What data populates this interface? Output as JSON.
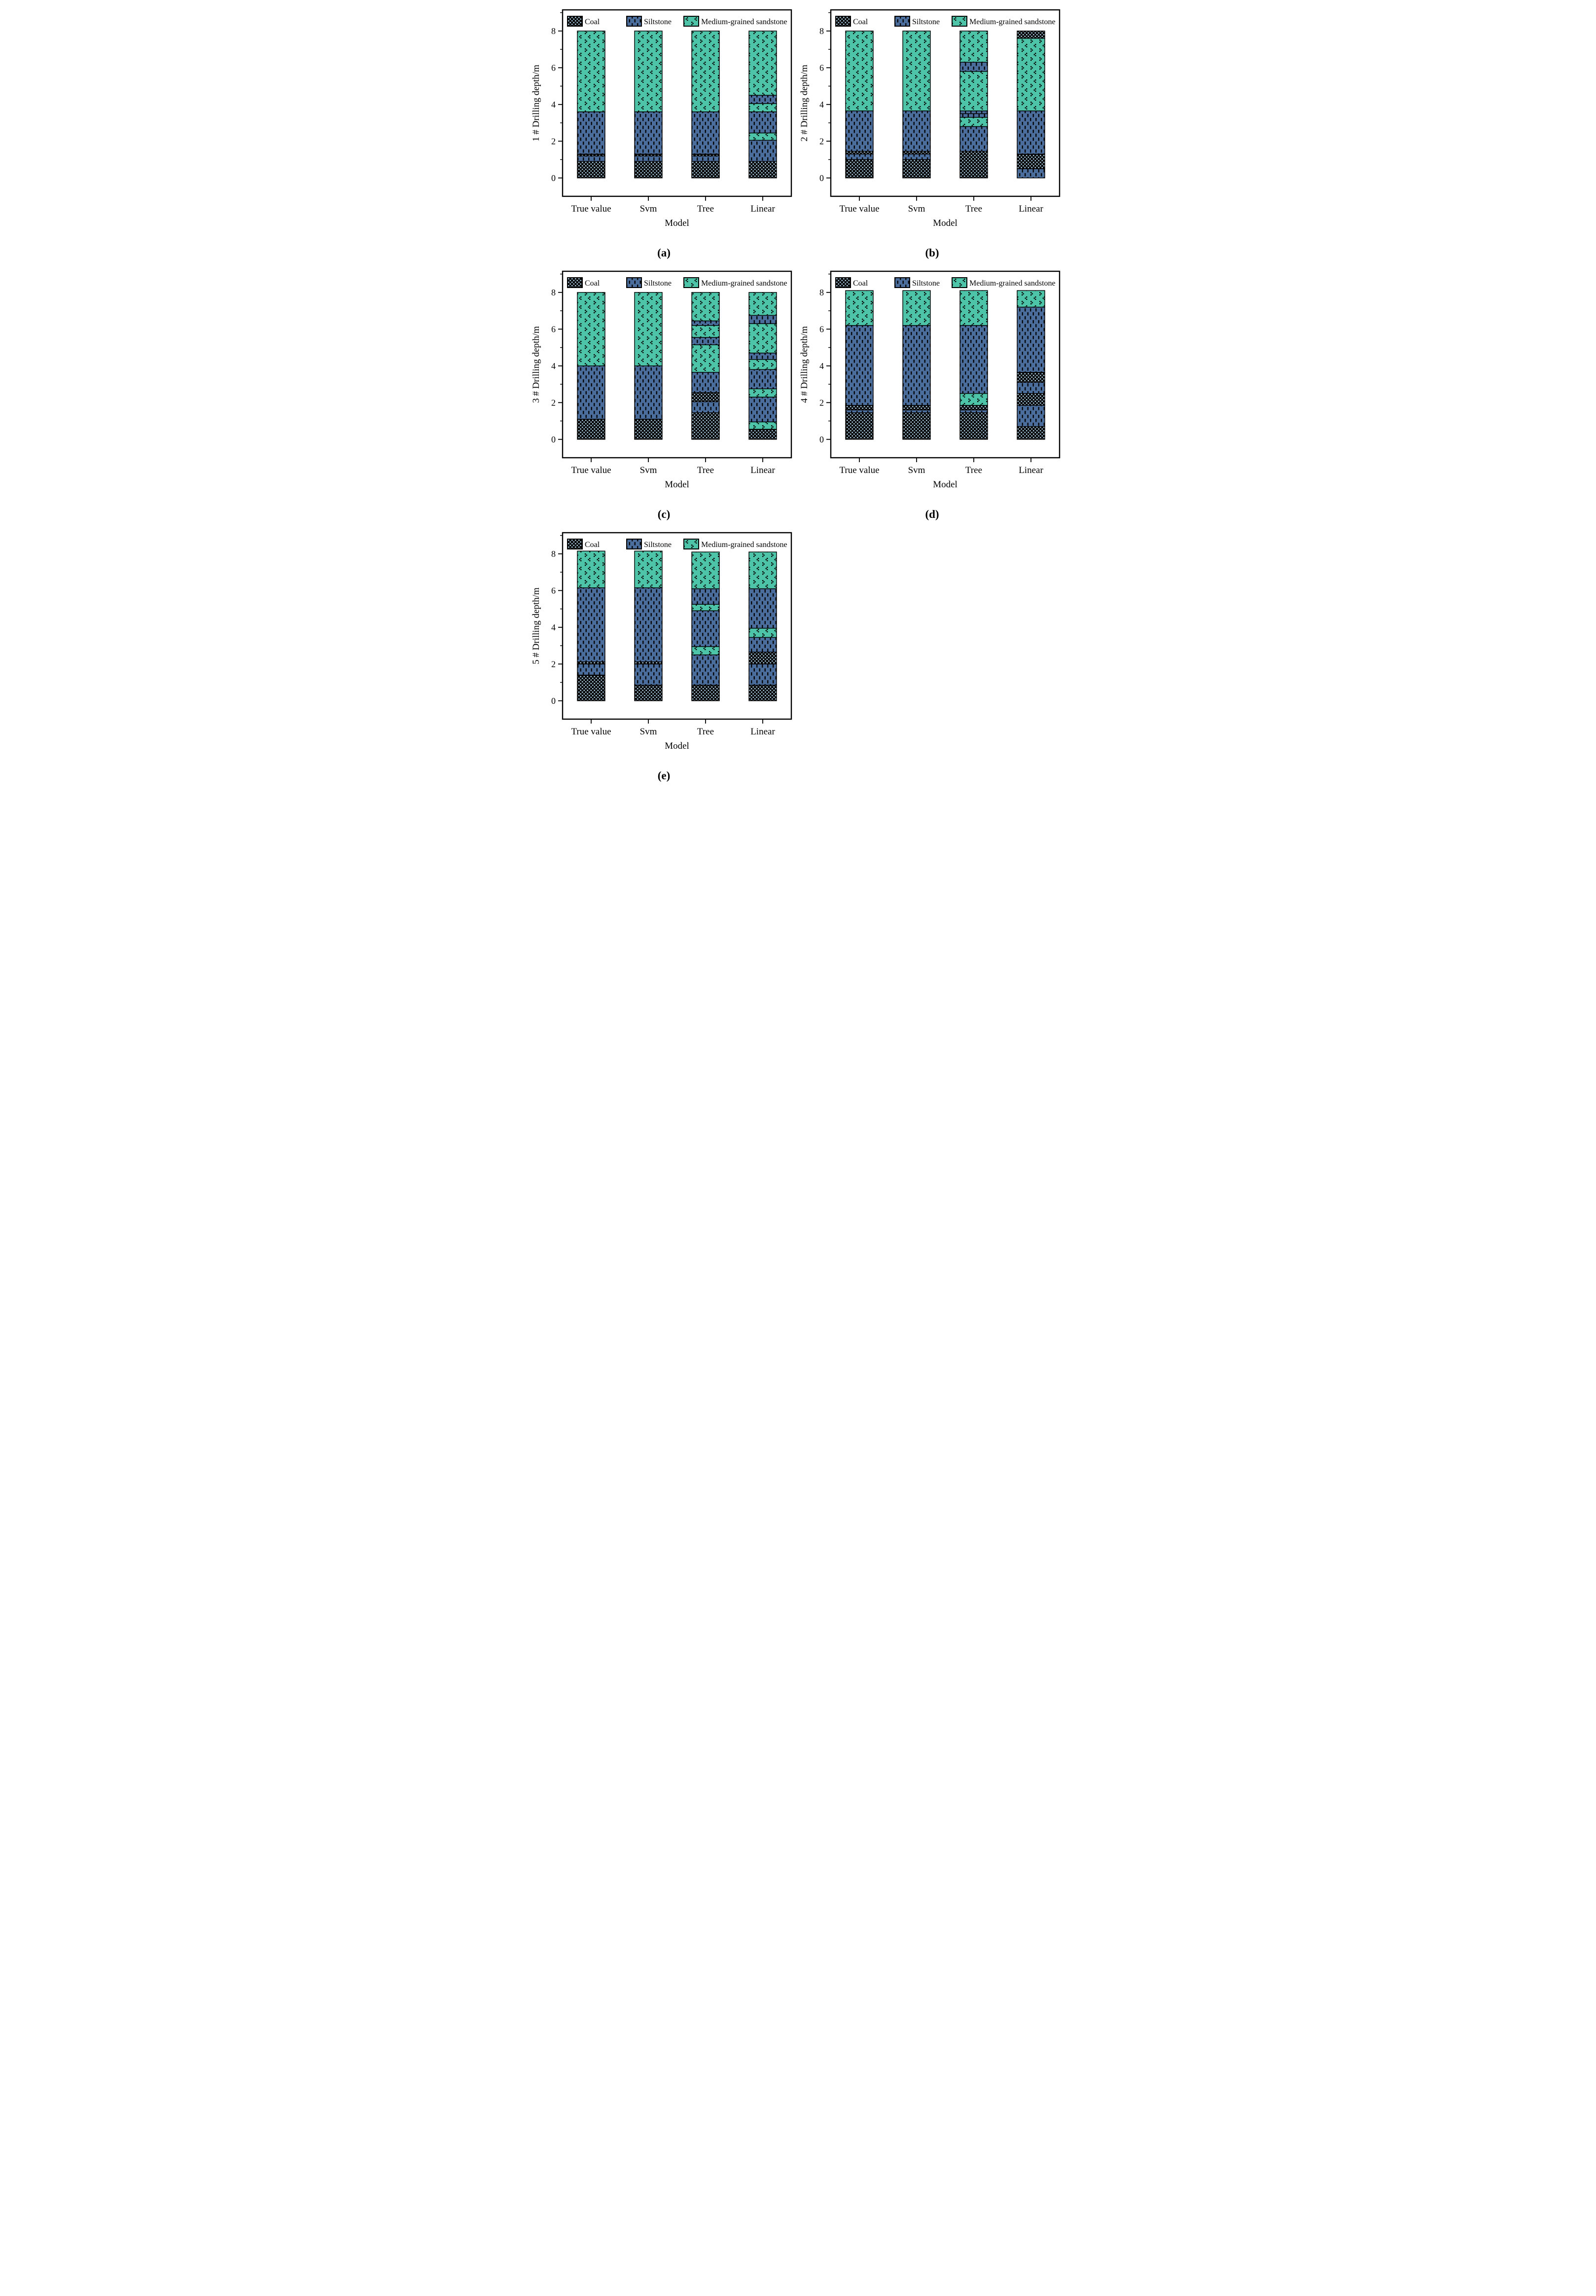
{
  "materials": {
    "coal": {
      "label": "Coal",
      "base": "#060606",
      "accent": "#a6c8dd",
      "pattern": "checker"
    },
    "siltstone": {
      "label": "Siltstone",
      "base": "#4a6d9b",
      "accent": "#000000",
      "pattern": "vertical-dash"
    },
    "sandstone": {
      "label": "Medium-grained sandstone",
      "base": "#4dc3a8",
      "accent": "#000000",
      "pattern": "chevron-dots"
    }
  },
  "legend_order": [
    "coal",
    "siltstone",
    "sandstone"
  ],
  "chart_data": [
    {
      "type": "bar",
      "stacked": true,
      "panel_label": "(a)",
      "ylabel": "1 # Drilling depth/m",
      "xlabel": "Model",
      "categories": [
        "True value",
        "Svm",
        "Tree",
        "Linear"
      ],
      "yticks": [
        0,
        2,
        4,
        6,
        8
      ],
      "ylim": [
        0,
        8
      ],
      "grid": false,
      "legend_position": "top-inside",
      "bars": [
        {
          "category": "True value",
          "segments": [
            {
              "m": "coal",
              "t": 0.9
            },
            {
              "m": "siltstone",
              "t": 0.3
            },
            {
              "m": "coal",
              "t": 0.1
            },
            {
              "m": "siltstone",
              "t": 2.3
            },
            {
              "m": "sandstone",
              "t": 4.4
            }
          ]
        },
        {
          "category": "Svm",
          "segments": [
            {
              "m": "coal",
              "t": 0.9
            },
            {
              "m": "siltstone",
              "t": 0.3
            },
            {
              "m": "coal",
              "t": 0.1
            },
            {
              "m": "siltstone",
              "t": 2.3
            },
            {
              "m": "sandstone",
              "t": 4.4
            }
          ]
        },
        {
          "category": "Tree",
          "segments": [
            {
              "m": "coal",
              "t": 0.9
            },
            {
              "m": "siltstone",
              "t": 0.3
            },
            {
              "m": "coal",
              "t": 0.1
            },
            {
              "m": "siltstone",
              "t": 2.3
            },
            {
              "m": "sandstone",
              "t": 4.4
            }
          ]
        },
        {
          "category": "Linear",
          "segments": [
            {
              "m": "coal",
              "t": 0.9
            },
            {
              "m": "siltstone",
              "t": 1.15
            },
            {
              "m": "sandstone",
              "t": 0.4
            },
            {
              "m": "siltstone",
              "t": 1.15
            },
            {
              "m": "sandstone",
              "t": 0.45
            },
            {
              "m": "siltstone",
              "t": 0.45
            },
            {
              "m": "sandstone",
              "t": 3.5
            }
          ]
        }
      ]
    },
    {
      "type": "bar",
      "stacked": true,
      "panel_label": "(b)",
      "ylabel": "2 # Drilling depth/m",
      "xlabel": "Model",
      "categories": [
        "True value",
        "Svm",
        "Tree",
        "Linear"
      ],
      "yticks": [
        0,
        2,
        4,
        6,
        8
      ],
      "ylim": [
        0,
        8
      ],
      "grid": false,
      "legend_position": "top-inside",
      "bars": [
        {
          "category": "True value",
          "segments": [
            {
              "m": "coal",
              "t": 1.0
            },
            {
              "m": "siltstone",
              "t": 0.3
            },
            {
              "m": "coal",
              "t": 0.15
            },
            {
              "m": "siltstone",
              "t": 2.2
            },
            {
              "m": "sandstone",
              "t": 4.35
            }
          ]
        },
        {
          "category": "Svm",
          "segments": [
            {
              "m": "coal",
              "t": 1.0
            },
            {
              "m": "siltstone",
              "t": 0.3
            },
            {
              "m": "coal",
              "t": 0.15
            },
            {
              "m": "siltstone",
              "t": 2.2
            },
            {
              "m": "sandstone",
              "t": 4.35
            }
          ]
        },
        {
          "category": "Tree",
          "segments": [
            {
              "m": "coal",
              "t": 1.45
            },
            {
              "m": "siltstone",
              "t": 1.35
            },
            {
              "m": "sandstone",
              "t": 0.5
            },
            {
              "m": "siltstone",
              "t": 0.2
            },
            {
              "m": "siltstone",
              "t": 0.15
            },
            {
              "m": "sandstone",
              "t": 2.15
            },
            {
              "m": "siltstone",
              "t": 0.5
            },
            {
              "m": "sandstone",
              "t": 1.7
            }
          ]
        },
        {
          "category": "Linear",
          "segments": [
            {
              "m": "siltstone",
              "t": 0.5
            },
            {
              "m": "coal",
              "t": 0.8
            },
            {
              "m": "siltstone",
              "t": 2.35
            },
            {
              "m": "sandstone",
              "t": 3.95
            },
            {
              "m": "coal",
              "t": 0.4
            }
          ]
        }
      ]
    },
    {
      "type": "bar",
      "stacked": true,
      "panel_label": "(c)",
      "ylabel": "3 # Drilling depth/m",
      "xlabel": "Model",
      "categories": [
        "True value",
        "Svm",
        "Tree",
        "Linear"
      ],
      "yticks": [
        0,
        2,
        4,
        6,
        8
      ],
      "ylim": [
        0,
        8
      ],
      "grid": false,
      "legend_position": "top-inside",
      "bars": [
        {
          "category": "True value",
          "segments": [
            {
              "m": "coal",
              "t": 1.1
            },
            {
              "m": "siltstone",
              "t": 2.9
            },
            {
              "m": "sandstone",
              "t": 4.0
            }
          ]
        },
        {
          "category": "Svm",
          "segments": [
            {
              "m": "coal",
              "t": 1.1
            },
            {
              "m": "siltstone",
              "t": 2.9
            },
            {
              "m": "sandstone",
              "t": 4.0
            }
          ]
        },
        {
          "category": "Tree",
          "segments": [
            {
              "m": "coal",
              "t": 1.45
            },
            {
              "m": "siltstone",
              "t": 0.6
            },
            {
              "m": "coal",
              "t": 0.5
            },
            {
              "m": "siltstone",
              "t": 1.1
            },
            {
              "m": "sandstone",
              "t": 1.5
            },
            {
              "m": "siltstone",
              "t": 0.4
            },
            {
              "m": "sandstone",
              "t": 0.65
            },
            {
              "m": "siltstone",
              "t": 0.25
            },
            {
              "m": "sandstone",
              "t": 1.55
            }
          ]
        },
        {
          "category": "Linear",
          "segments": [
            {
              "m": "coal",
              "t": 0.55
            },
            {
              "m": "sandstone",
              "t": 0.4
            },
            {
              "m": "siltstone",
              "t": 1.35
            },
            {
              "m": "sandstone",
              "t": 0.45
            },
            {
              "m": "siltstone",
              "t": 1.05
            },
            {
              "m": "sandstone",
              "t": 0.55
            },
            {
              "m": "siltstone",
              "t": 0.35
            },
            {
              "m": "sandstone",
              "t": 1.6
            },
            {
              "m": "siltstone",
              "t": 0.45
            },
            {
              "m": "sandstone",
              "t": 1.25
            }
          ]
        }
      ]
    },
    {
      "type": "bar",
      "stacked": true,
      "panel_label": "(d)",
      "ylabel": "4 # Drilling depth/m",
      "xlabel": "Model",
      "categories": [
        "True value",
        "Svm",
        "Tree",
        "Linear"
      ],
      "yticks": [
        0,
        2,
        4,
        6,
        8
      ],
      "ylim": [
        0,
        8.1
      ],
      "grid": false,
      "legend_position": "top-inside",
      "bars": [
        {
          "category": "True value",
          "segments": [
            {
              "m": "coal",
              "t": 1.45
            },
            {
              "m": "siltstone",
              "t": 0.15
            },
            {
              "m": "coal",
              "t": 0.25
            },
            {
              "m": "siltstone",
              "t": 4.35
            },
            {
              "m": "sandstone",
              "t": 1.9
            }
          ]
        },
        {
          "category": "Svm",
          "segments": [
            {
              "m": "coal",
              "t": 1.45
            },
            {
              "m": "siltstone",
              "t": 0.15
            },
            {
              "m": "coal",
              "t": 0.25
            },
            {
              "m": "siltstone",
              "t": 4.35
            },
            {
              "m": "sandstone",
              "t": 1.9
            }
          ]
        },
        {
          "category": "Tree",
          "segments": [
            {
              "m": "coal",
              "t": 1.45
            },
            {
              "m": "siltstone",
              "t": 0.15
            },
            {
              "m": "coal",
              "t": 0.25
            },
            {
              "m": "sandstone",
              "t": 0.65
            },
            {
              "m": "siltstone",
              "t": 3.7
            },
            {
              "m": "sandstone",
              "t": 1.9
            }
          ]
        },
        {
          "category": "Linear",
          "segments": [
            {
              "m": "coal",
              "t": 0.7
            },
            {
              "m": "siltstone",
              "t": 1.15
            },
            {
              "m": "coal",
              "t": 0.65
            },
            {
              "m": "siltstone",
              "t": 0.6
            },
            {
              "m": "coal",
              "t": 0.55
            },
            {
              "m": "siltstone",
              "t": 3.55
            },
            {
              "m": "sandstone",
              "t": 0.9
            }
          ]
        }
      ]
    },
    {
      "type": "bar",
      "stacked": true,
      "panel_label": "(e)",
      "ylabel": "5 # Drilling depth/m",
      "xlabel": "Model",
      "categories": [
        "True value",
        "Svm",
        "Tree",
        "Linear"
      ],
      "yticks": [
        0,
        2,
        4,
        6,
        8
      ],
      "ylim": [
        0,
        8.15
      ],
      "grid": false,
      "legend_position": "top-inside",
      "bars": [
        {
          "category": "True value",
          "segments": [
            {
              "m": "coal",
              "t": 1.4
            },
            {
              "m": "siltstone",
              "t": 0.6
            },
            {
              "m": "coal",
              "t": 0.12
            },
            {
              "m": "siltstone",
              "t": 4.03
            },
            {
              "m": "sandstone",
              "t": 2.0
            }
          ]
        },
        {
          "category": "Svm",
          "segments": [
            {
              "m": "coal",
              "t": 0.85
            },
            {
              "m": "siltstone",
              "t": 1.15
            },
            {
              "m": "coal",
              "t": 0.12
            },
            {
              "m": "siltstone",
              "t": 4.03
            },
            {
              "m": "sandstone",
              "t": 2.0
            }
          ]
        },
        {
          "category": "Tree",
          "segments": [
            {
              "m": "coal",
              "t": 0.85
            },
            {
              "m": "siltstone",
              "t": 1.65
            },
            {
              "m": "sandstone",
              "t": 0.45
            },
            {
              "m": "siltstone",
              "t": 1.95
            },
            {
              "m": "sandstone",
              "t": 0.35
            },
            {
              "m": "siltstone",
              "t": 0.85
            },
            {
              "m": "sandstone",
              "t": 2.0
            }
          ]
        },
        {
          "category": "Linear",
          "segments": [
            {
              "m": "coal",
              "t": 0.85
            },
            {
              "m": "siltstone",
              "t": 1.15
            },
            {
              "m": "coal",
              "t": 0.65
            },
            {
              "m": "siltstone",
              "t": 0.8
            },
            {
              "m": "sandstone",
              "t": 0.5
            },
            {
              "m": "siltstone",
              "t": 2.15
            },
            {
              "m": "sandstone",
              "t": 2.0
            }
          ]
        }
      ]
    }
  ]
}
